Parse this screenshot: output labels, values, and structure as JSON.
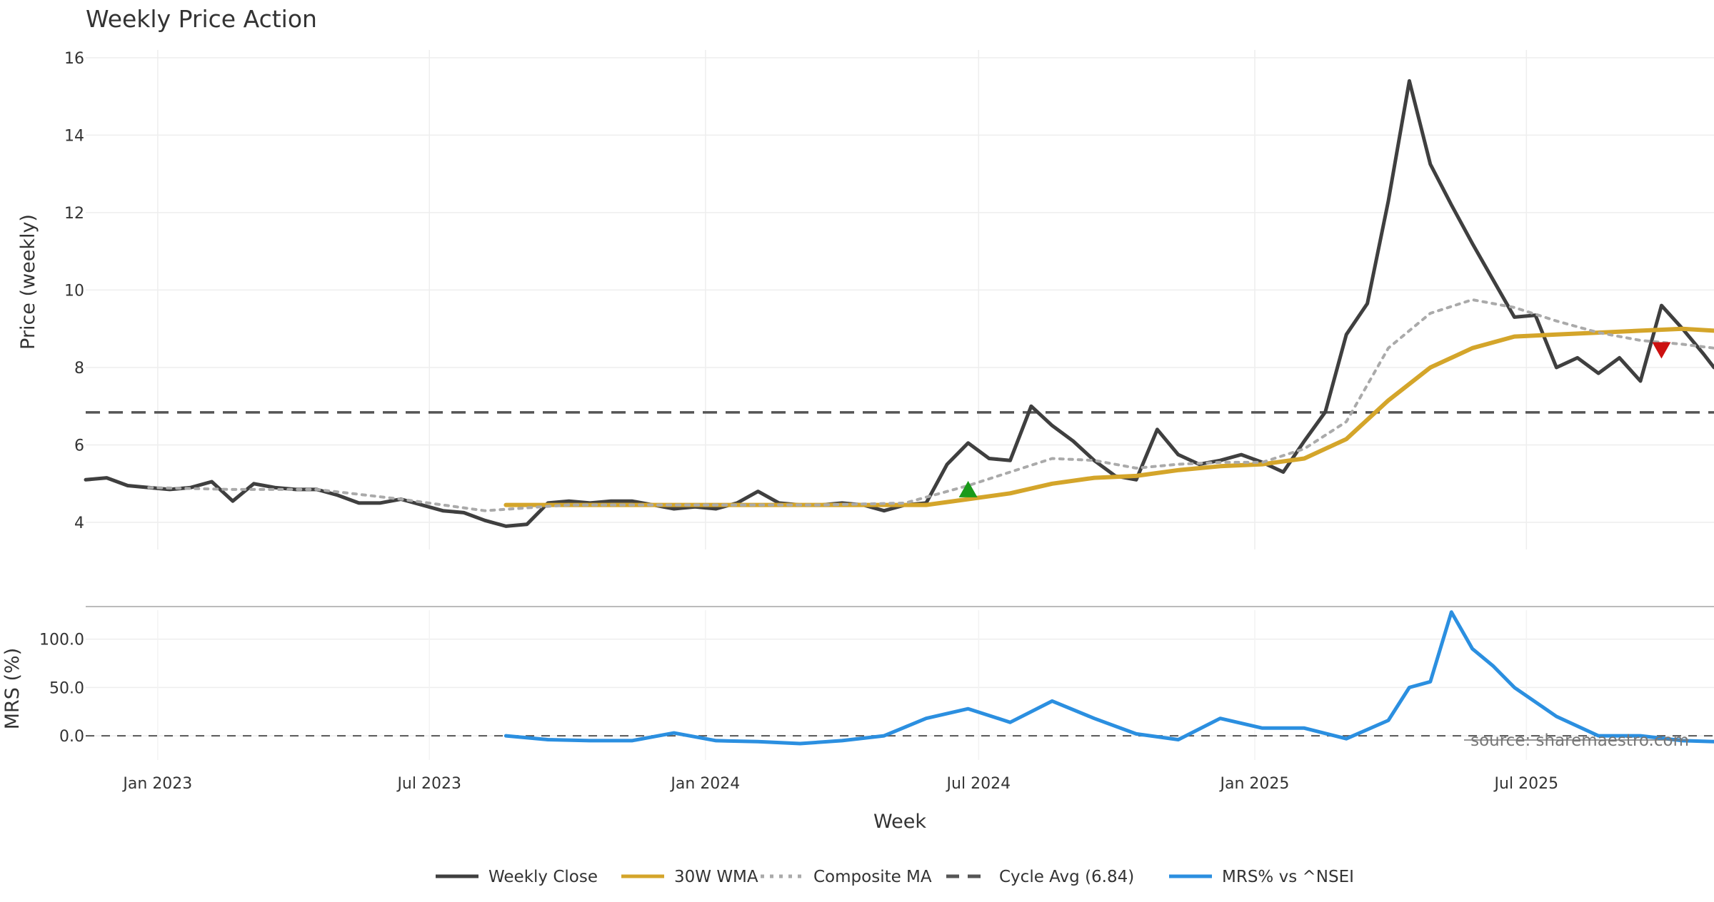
{
  "chart_data": {
    "type": "line",
    "title": "Weekly Price Action",
    "source_text": "source: sharemaestro.com",
    "xlabel": "Week",
    "xticks": [
      "Jan 2023",
      "Jul 2023",
      "Jan 2024",
      "Jul 2024",
      "Jan 2025",
      "Jul 2025"
    ],
    "x_range": [
      "2022-11-14",
      "2025-11-03"
    ],
    "price_panel": {
      "ylabel": "Price (weekly)",
      "ylim": [
        3.3,
        16.2
      ],
      "yticks": [
        4,
        6,
        8,
        10,
        12,
        14,
        16
      ],
      "cycle_avg": 6.84
    },
    "mrs_panel": {
      "ylabel": "MRS (%)",
      "ylim": [
        -25,
        130
      ],
      "yticks": [
        "0.0",
        "50.0",
        "100.0"
      ],
      "yticks_values": [
        0,
        50,
        100
      ]
    },
    "legend": [
      {
        "label": "Weekly Close",
        "color": "#3f3f3f",
        "style": "solid"
      },
      {
        "label": "30W WMA",
        "color": "#d4a52a",
        "style": "solid"
      },
      {
        "label": "Composite MA",
        "color": "#aaaaaa",
        "style": "dotted"
      },
      {
        "label": "Cycle Avg (6.84)",
        "color": "#555555",
        "style": "dashed"
      },
      {
        "label": "MRS% vs ^NSEI",
        "color": "#2b8fe0",
        "style": "solid"
      }
    ],
    "series": [
      {
        "name": "Weekly Close",
        "color": "#3f3f3f",
        "points": [
          [
            "2022-11-14",
            5.1
          ],
          [
            "2022-11-28",
            5.15
          ],
          [
            "2022-12-12",
            4.95
          ],
          [
            "2022-12-26",
            4.9
          ],
          [
            "2023-01-09",
            4.85
          ],
          [
            "2023-01-23",
            4.9
          ],
          [
            "2023-02-06",
            5.05
          ],
          [
            "2023-02-20",
            4.55
          ],
          [
            "2023-03-06",
            5.0
          ],
          [
            "2023-03-20",
            4.9
          ],
          [
            "2023-04-03",
            4.85
          ],
          [
            "2023-04-17",
            4.85
          ],
          [
            "2023-05-01",
            4.7
          ],
          [
            "2023-05-15",
            4.5
          ],
          [
            "2023-05-29",
            4.5
          ],
          [
            "2023-06-12",
            4.6
          ],
          [
            "2023-06-26",
            4.45
          ],
          [
            "2023-07-10",
            4.3
          ],
          [
            "2023-07-24",
            4.25
          ],
          [
            "2023-08-07",
            4.05
          ],
          [
            "2023-08-21",
            3.9
          ],
          [
            "2023-09-04",
            3.95
          ],
          [
            "2023-09-18",
            4.5
          ],
          [
            "2023-10-02",
            4.55
          ],
          [
            "2023-10-16",
            4.5
          ],
          [
            "2023-10-30",
            4.55
          ],
          [
            "2023-11-13",
            4.55
          ],
          [
            "2023-11-27",
            4.45
          ],
          [
            "2023-12-11",
            4.35
          ],
          [
            "2023-12-25",
            4.4
          ],
          [
            "2024-01-08",
            4.35
          ],
          [
            "2024-01-22",
            4.5
          ],
          [
            "2024-02-05",
            4.8
          ],
          [
            "2024-02-19",
            4.5
          ],
          [
            "2024-03-04",
            4.45
          ],
          [
            "2024-03-18",
            4.45
          ],
          [
            "2024-04-01",
            4.5
          ],
          [
            "2024-04-15",
            4.45
          ],
          [
            "2024-04-29",
            4.3
          ],
          [
            "2024-05-13",
            4.45
          ],
          [
            "2024-05-27",
            4.5
          ],
          [
            "2024-06-10",
            5.5
          ],
          [
            "2024-06-24",
            6.05
          ],
          [
            "2024-07-08",
            5.65
          ],
          [
            "2024-07-22",
            5.6
          ],
          [
            "2024-08-05",
            7.0
          ],
          [
            "2024-08-19",
            6.5
          ],
          [
            "2024-09-02",
            6.1
          ],
          [
            "2024-09-16",
            5.6
          ],
          [
            "2024-09-30",
            5.2
          ],
          [
            "2024-10-14",
            5.1
          ],
          [
            "2024-10-28",
            6.4
          ],
          [
            "2024-11-11",
            5.75
          ],
          [
            "2024-11-25",
            5.5
          ],
          [
            "2024-12-09",
            5.6
          ],
          [
            "2024-12-23",
            5.75
          ],
          [
            "2025-01-06",
            5.55
          ],
          [
            "2025-01-20",
            5.3
          ],
          [
            "2025-02-03",
            6.1
          ],
          [
            "2025-02-17",
            6.85
          ],
          [
            "2025-03-03",
            8.85
          ],
          [
            "2025-03-17",
            9.65
          ],
          [
            "2025-03-31",
            12.3
          ],
          [
            "2025-04-14",
            15.4
          ],
          [
            "2025-04-28",
            13.25
          ],
          [
            "2025-05-12",
            12.2
          ],
          [
            "2025-05-26",
            11.2
          ],
          [
            "2025-06-09",
            10.25
          ],
          [
            "2025-06-23",
            9.3
          ],
          [
            "2025-07-07",
            9.35
          ],
          [
            "2025-07-21",
            8.0
          ],
          [
            "2025-08-04",
            8.25
          ],
          [
            "2025-08-18",
            7.85
          ],
          [
            "2025-09-01",
            8.25
          ],
          [
            "2025-09-15",
            7.65
          ],
          [
            "2025-09-29",
            9.6
          ],
          [
            "2025-10-13",
            9.0
          ],
          [
            "2025-10-27",
            8.35
          ],
          [
            "2025-11-03",
            8.0
          ]
        ]
      },
      {
        "name": "30W WMA",
        "color": "#d4a52a",
        "points": [
          [
            "2023-08-21",
            4.45
          ],
          [
            "2023-10-16",
            4.45
          ],
          [
            "2023-12-11",
            4.45
          ],
          [
            "2024-02-05",
            4.45
          ],
          [
            "2024-04-01",
            4.45
          ],
          [
            "2024-05-27",
            4.45
          ],
          [
            "2024-06-24",
            4.6
          ],
          [
            "2024-07-22",
            4.75
          ],
          [
            "2024-08-19",
            5.0
          ],
          [
            "2024-09-16",
            5.15
          ],
          [
            "2024-10-14",
            5.2
          ],
          [
            "2024-11-11",
            5.35
          ],
          [
            "2024-12-09",
            5.45
          ],
          [
            "2025-01-06",
            5.5
          ],
          [
            "2025-02-03",
            5.65
          ],
          [
            "2025-03-03",
            6.15
          ],
          [
            "2025-03-31",
            7.15
          ],
          [
            "2025-04-28",
            8.0
          ],
          [
            "2025-05-26",
            8.5
          ],
          [
            "2025-06-23",
            8.8
          ],
          [
            "2025-07-21",
            8.85
          ],
          [
            "2025-08-18",
            8.9
          ],
          [
            "2025-09-15",
            8.95
          ],
          [
            "2025-10-13",
            9.0
          ],
          [
            "2025-11-03",
            8.95
          ]
        ]
      },
      {
        "name": "Composite MA",
        "color": "#aaaaaa",
        "points": [
          [
            "2022-12-26",
            4.9
          ],
          [
            "2023-02-20",
            4.85
          ],
          [
            "2023-04-17",
            4.85
          ],
          [
            "2023-06-12",
            4.6
          ],
          [
            "2023-08-07",
            4.3
          ],
          [
            "2023-10-02",
            4.45
          ],
          [
            "2023-11-27",
            4.45
          ],
          [
            "2024-01-22",
            4.45
          ],
          [
            "2024-03-18",
            4.45
          ],
          [
            "2024-05-13",
            4.5
          ],
          [
            "2024-06-24",
            4.95
          ],
          [
            "2024-07-22",
            5.3
          ],
          [
            "2024-08-19",
            5.65
          ],
          [
            "2024-09-16",
            5.6
          ],
          [
            "2024-10-14",
            5.4
          ],
          [
            "2024-11-11",
            5.5
          ],
          [
            "2024-12-09",
            5.55
          ],
          [
            "2025-01-06",
            5.55
          ],
          [
            "2025-02-03",
            5.9
          ],
          [
            "2025-03-03",
            6.6
          ],
          [
            "2025-03-31",
            8.5
          ],
          [
            "2025-04-28",
            9.4
          ],
          [
            "2025-05-26",
            9.75
          ],
          [
            "2025-06-23",
            9.55
          ],
          [
            "2025-07-21",
            9.2
          ],
          [
            "2025-08-18",
            8.9
          ],
          [
            "2025-09-15",
            8.7
          ],
          [
            "2025-10-13",
            8.6
          ],
          [
            "2025-11-03",
            8.5
          ]
        ]
      },
      {
        "name": "MRS% vs ^NSEI",
        "color": "#2b8fe0",
        "points": [
          [
            "2023-08-21",
            0
          ],
          [
            "2023-09-18",
            -4
          ],
          [
            "2023-10-16",
            -5
          ],
          [
            "2023-11-13",
            -5
          ],
          [
            "2023-12-11",
            3
          ],
          [
            "2024-01-08",
            -5
          ],
          [
            "2024-02-05",
            -6
          ],
          [
            "2024-03-04",
            -8
          ],
          [
            "2024-04-01",
            -5
          ],
          [
            "2024-04-29",
            0
          ],
          [
            "2024-05-27",
            18
          ],
          [
            "2024-06-24",
            28
          ],
          [
            "2024-07-22",
            14
          ],
          [
            "2024-08-19",
            36
          ],
          [
            "2024-09-16",
            18
          ],
          [
            "2024-10-14",
            2
          ],
          [
            "2024-11-11",
            -4
          ],
          [
            "2024-12-09",
            18
          ],
          [
            "2025-01-06",
            8
          ],
          [
            "2025-02-03",
            8
          ],
          [
            "2025-03-03",
            -3
          ],
          [
            "2025-03-31",
            16
          ],
          [
            "2025-04-14",
            50
          ],
          [
            "2025-04-28",
            56
          ],
          [
            "2025-05-12",
            128
          ],
          [
            "2025-05-26",
            90
          ],
          [
            "2025-06-09",
            72
          ],
          [
            "2025-06-23",
            50
          ],
          [
            "2025-07-21",
            20
          ],
          [
            "2025-08-18",
            0
          ],
          [
            "2025-09-15",
            0
          ],
          [
            "2025-10-13",
            -5
          ],
          [
            "2025-11-03",
            -6
          ]
        ]
      }
    ],
    "markers": [
      {
        "type": "buy",
        "date": "2024-06-24",
        "value": 4.85,
        "color": "#1a9a1a"
      },
      {
        "type": "sell",
        "date": "2025-09-29",
        "value": 8.45,
        "color": "#cc1111"
      }
    ]
  }
}
